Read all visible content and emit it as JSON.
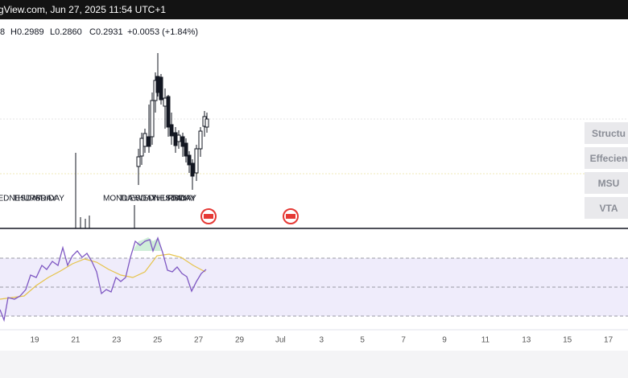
{
  "header": {
    "title": "gView.com, Jun 27, 2025 11:54 UTC+1"
  },
  "ohlc": {
    "open": "8",
    "high": "H0.2989",
    "low": "L0.2860",
    "close": "C0.2931",
    "change": "+0.0053 (+1.84%)"
  },
  "day_labels": {
    "left": [
      "WEDNESDAY",
      "THURSDAY",
      "FRIDAY"
    ],
    "right": [
      "MONDAY",
      "TUESDAY",
      "WEDNESDAY",
      "THURSDAY",
      "FRIDAY"
    ]
  },
  "buttons": [
    "Structu",
    "Effecien",
    "MSU",
    "VTA"
  ],
  "x_axis": [
    "19",
    "21",
    "23",
    "25",
    "27",
    "29",
    "Jul",
    "3",
    "5",
    "7",
    "9",
    "11",
    "13",
    "15",
    "17"
  ]
}
